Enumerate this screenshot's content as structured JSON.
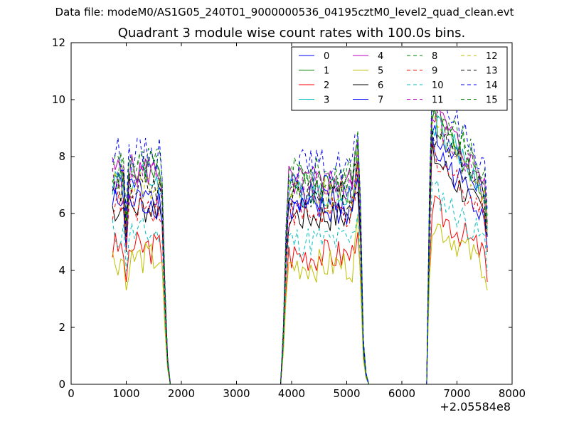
{
  "header": {
    "suptitle": "Data file: modeM0/AS1G05_240T01_9000000536_04195cztM0_level2_quad_clean.evt",
    "title": "Quadrant 3 module wise count rates with 100.0s bins.",
    "x_offset_label": "+2.05584e8"
  },
  "chart_data": {
    "type": "line",
    "title": "Quadrant 3 module wise count rates with 100.0s bins.",
    "xlabel": "",
    "ylabel": "",
    "xlim": [
      0,
      8000
    ],
    "ylim": [
      0,
      12
    ],
    "xticks": [
      0,
      1000,
      2000,
      3000,
      4000,
      5000,
      6000,
      7000,
      8000
    ],
    "yticks": [
      0,
      2,
      4,
      6,
      8,
      10,
      12
    ],
    "grid": false,
    "legend": "top-right",
    "x_offset": 205584000,
    "x": [
      750,
      800,
      850,
      900,
      950,
      1000,
      1050,
      1100,
      1150,
      1200,
      1250,
      1300,
      1350,
      1400,
      1450,
      1500,
      1550,
      1600,
      1650,
      1700,
      1750,
      1800,
      1850,
      3800,
      3850,
      3900,
      3950,
      4000,
      4050,
      4100,
      4150,
      4200,
      4250,
      4300,
      4350,
      4400,
      4450,
      4500,
      4550,
      4600,
      4650,
      4700,
      4750,
      4800,
      4850,
      4900,
      4950,
      5000,
      5050,
      5100,
      5150,
      5200,
      5250,
      5300,
      5350,
      5400,
      5450,
      6450,
      6500,
      6550,
      6600,
      6650,
      6700,
      6750,
      6800,
      6850,
      6900,
      6950,
      7000,
      7050,
      7100,
      7150,
      7200,
      7250,
      7300,
      7350,
      7400,
      7450,
      7500,
      7550
    ],
    "series": [
      {
        "name": "0",
        "color": "#0000ff",
        "dash": "solid",
        "base": 6.9,
        "seed": 1
      },
      {
        "name": "1",
        "color": "#008000",
        "dash": "solid",
        "base": 7.3,
        "seed": 2
      },
      {
        "name": "2",
        "color": "#ff0000",
        "dash": "solid",
        "base": 4.8,
        "seed": 3
      },
      {
        "name": "3",
        "color": "#00bfbf",
        "dash": "solid",
        "base": 7.2,
        "seed": 4
      },
      {
        "name": "4",
        "color": "#bf00bf",
        "dash": "solid",
        "base": 7.5,
        "seed": 5
      },
      {
        "name": "5",
        "color": "#bfbf00",
        "dash": "solid",
        "base": 4.4,
        "seed": 6
      },
      {
        "name": "6",
        "color": "#000000",
        "dash": "solid",
        "base": 6.2,
        "seed": 7
      },
      {
        "name": "7",
        "color": "#0000ff",
        "dash": "solid",
        "base": 6.4,
        "seed": 8
      },
      {
        "name": "8",
        "color": "#008000",
        "dash": "dashed",
        "base": 7.8,
        "seed": 9
      },
      {
        "name": "9",
        "color": "#ff0000",
        "dash": "dashed",
        "base": 6.3,
        "seed": 10
      },
      {
        "name": "10",
        "color": "#00bfbf",
        "dash": "dashed",
        "base": 5.3,
        "seed": 11
      },
      {
        "name": "11",
        "color": "#bf00bf",
        "dash": "dashed",
        "base": 7.3,
        "seed": 12
      },
      {
        "name": "12",
        "color": "#bfbf00",
        "dash": "dashed",
        "base": 7.0,
        "seed": 13
      },
      {
        "name": "13",
        "color": "#000000",
        "dash": "dashed",
        "base": 6.9,
        "seed": 14
      },
      {
        "name": "14",
        "color": "#0000ff",
        "dash": "dashed",
        "base": 8.1,
        "seed": 15
      },
      {
        "name": "15",
        "color": "#008000",
        "dash": "dashed",
        "base": 7.6,
        "seed": 16
      }
    ]
  }
}
